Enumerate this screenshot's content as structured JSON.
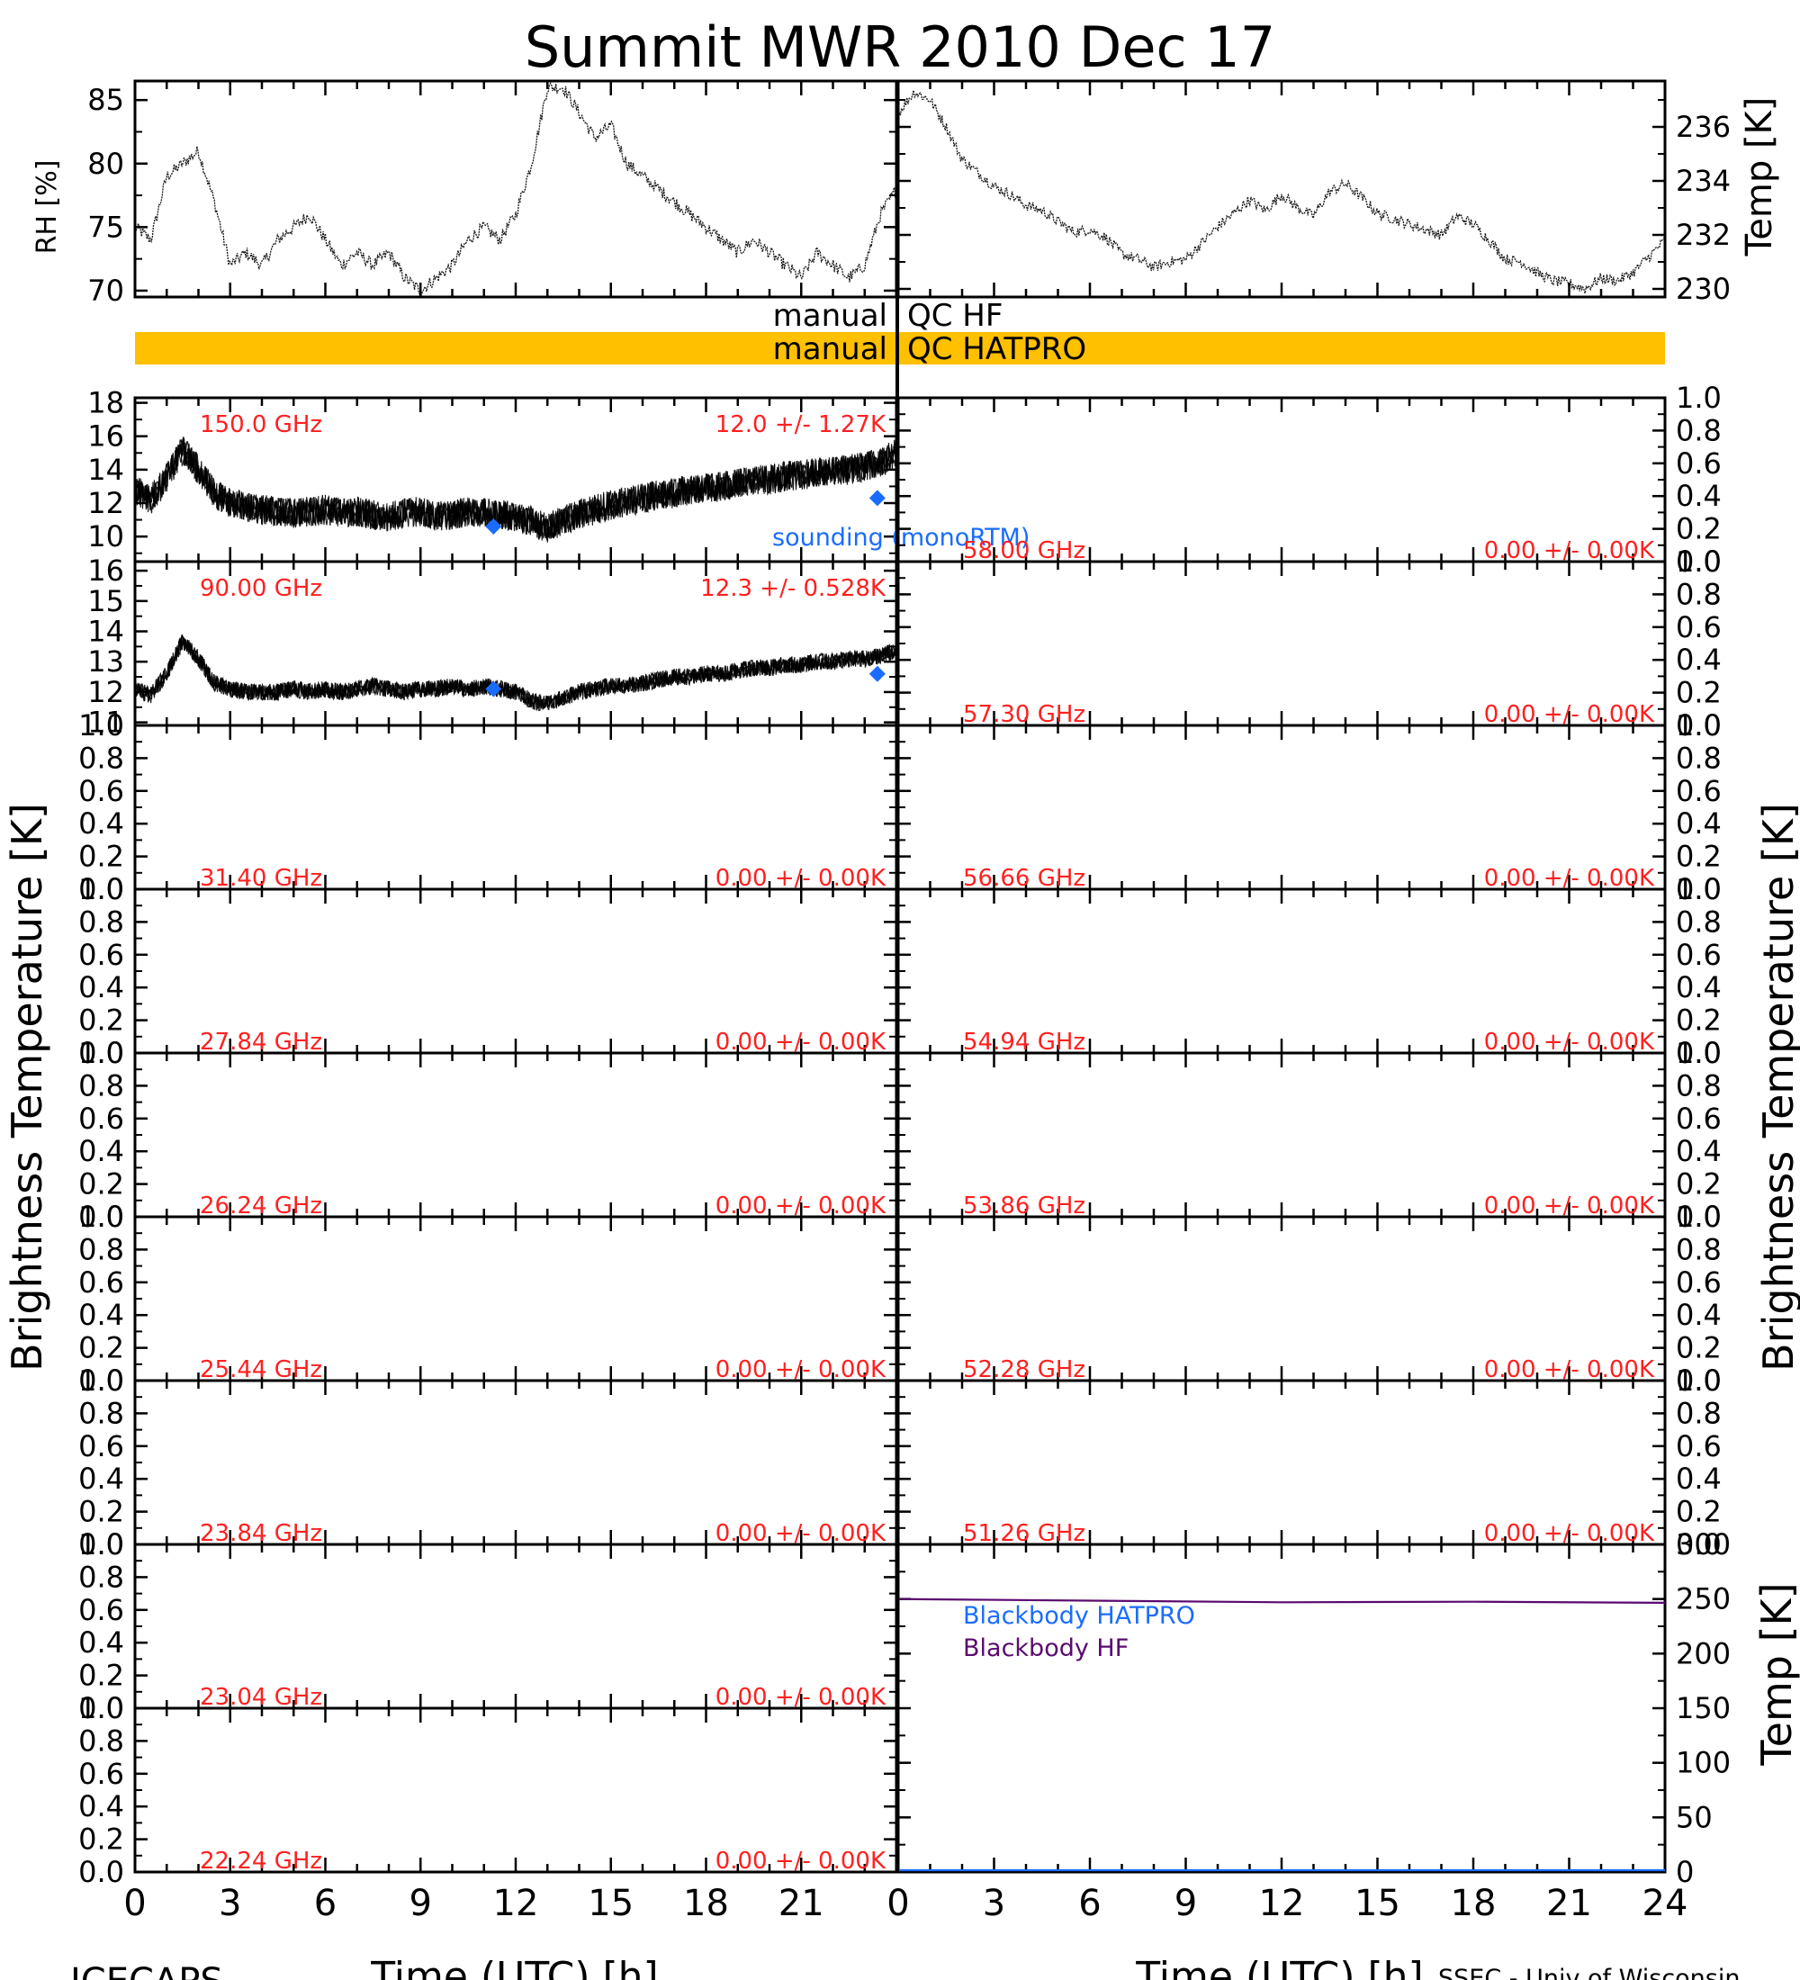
{
  "title": "Summit MWR 2010 Dec 17",
  "footer": {
    "left": "ICECAPS",
    "right": "SSEC - Univ of Wisconsin"
  },
  "qc_bars": [
    {
      "label": "manual QC HF",
      "color": "",
      "flagged": false
    },
    {
      "label": "manual QC HATPRO",
      "color": "#ffc000",
      "flagged": true
    }
  ],
  "colors": {
    "marker": "#1a6cff",
    "label": "#ff2020",
    "trace": "#000000",
    "bb_hf": "#5a0a6e",
    "bb_hatpro": "#1a6cff"
  },
  "chart_data": [
    {
      "id": "rh",
      "type": "line",
      "ylabel": "RH [%]",
      "ylim": [
        69.5,
        86.5
      ],
      "yticks": [
        70,
        75,
        80,
        85
      ],
      "x": [
        0,
        0.5,
        1,
        1.5,
        2,
        2.5,
        3,
        3.5,
        4,
        4.5,
        5,
        5.5,
        6,
        6.5,
        7,
        7.5,
        8,
        8.5,
        9,
        9.5,
        10,
        10.5,
        11,
        11.5,
        12,
        12.5,
        13,
        13.5,
        14,
        14.5,
        15,
        15.5,
        16,
        16.5,
        17,
        17.5,
        18,
        18.5,
        19,
        19.5,
        20,
        20.5,
        21,
        21.5,
        22,
        22.5,
        23,
        23.5,
        24
      ],
      "values": [
        75,
        74,
        79,
        80,
        81,
        77,
        72,
        73,
        72,
        74,
        75,
        76,
        74,
        72,
        73,
        72,
        73,
        71,
        70,
        71,
        72,
        74,
        75,
        74,
        76,
        80,
        86,
        86,
        84,
        82,
        83,
        80,
        79,
        78,
        77,
        76,
        75,
        74,
        73,
        74,
        73,
        72,
        71,
        73,
        72,
        71,
        72,
        76,
        78
      ]
    },
    {
      "id": "temp",
      "type": "line",
      "ylabel": "Temp [K]",
      "ylim": [
        229.7,
        237.7
      ],
      "yticks": [
        230,
        232,
        234,
        236
      ],
      "x": [
        0,
        0.5,
        1,
        1.5,
        2,
        2.5,
        3,
        3.5,
        4,
        4.5,
        5,
        5.5,
        6,
        6.5,
        7,
        7.5,
        8,
        8.5,
        9,
        9.5,
        10,
        10.5,
        11,
        11.5,
        12,
        12.5,
        13,
        13.5,
        14,
        14.5,
        15,
        15.5,
        16,
        16.5,
        17,
        17.5,
        18,
        18.5,
        19,
        19.5,
        20,
        20.5,
        21,
        21.5,
        22,
        22.5,
        23,
        23.5,
        24
      ],
      "values": [
        236.5,
        237.3,
        237,
        236,
        234.8,
        234.3,
        233.8,
        233.5,
        233.1,
        232.9,
        232.5,
        232.1,
        232.2,
        231.9,
        231.3,
        231.1,
        230.8,
        231,
        231.1,
        231.7,
        232.3,
        232.8,
        233.3,
        232.9,
        233.5,
        233,
        232.7,
        233.6,
        233.9,
        233.4,
        232.8,
        232.6,
        232.4,
        232.2,
        232,
        232.7,
        232.4,
        231.8,
        231.1,
        231,
        230.6,
        230.3,
        230.2,
        230,
        230.4,
        230.3,
        230.6,
        231.2,
        231.8
      ]
    },
    {
      "id": "ch150",
      "type": "line",
      "side": "left",
      "ylim": [
        8.5,
        18.3
      ],
      "yticks": [
        10,
        12,
        14,
        16,
        18
      ],
      "freq": "150.0 GHz",
      "stat": "12.0 +/- 1.27K",
      "x": [
        0,
        0.5,
        1,
        1.5,
        2,
        2.5,
        3,
        3.5,
        4,
        4.5,
        5,
        5.5,
        6,
        6.5,
        7,
        7.5,
        8,
        8.5,
        9,
        9.5,
        10,
        10.5,
        11,
        11.5,
        12,
        12.5,
        13,
        13.5,
        14,
        14.5,
        15,
        15.5,
        16,
        16.5,
        17,
        17.5,
        18,
        18.5,
        19,
        19.5,
        20,
        20.5,
        21,
        21.5,
        22,
        22.5,
        23,
        23.5,
        24
      ],
      "values": [
        12.8,
        12.2,
        13.5,
        15.2,
        14,
        12.6,
        12,
        11.8,
        11.6,
        11.5,
        11.4,
        11.5,
        11.6,
        11.4,
        11.5,
        11.3,
        11.2,
        11.4,
        11.5,
        11.2,
        11.3,
        11.5,
        11.4,
        11.3,
        11.2,
        10.9,
        10.5,
        11,
        11.3,
        11.6,
        11.9,
        12.1,
        12.3,
        12.5,
        12.6,
        12.8,
        12.9,
        13,
        13.2,
        13.3,
        13.4,
        13.6,
        13.7,
        13.8,
        13.9,
        14,
        14.2,
        14.4,
        15
      ],
      "points": [
        {
          "x": 11.3,
          "y": 10.6
        },
        {
          "x": 23.4,
          "y": 12.3
        }
      ],
      "point_label": "sounding (monoRTM)"
    },
    {
      "id": "ch58",
      "type": "line",
      "side": "right",
      "ylim": [
        0,
        1
      ],
      "yticks": [
        0,
        0.2,
        0.4,
        0.6,
        0.8,
        1.0
      ],
      "freq": "58.00 GHz",
      "stat": "0.00 +/- 0.00K"
    },
    {
      "id": "ch90",
      "type": "line",
      "side": "left",
      "ylim": [
        10.9,
        16.3
      ],
      "yticks": [
        11,
        12,
        13,
        14,
        15,
        16
      ],
      "freq": "90.00 GHz",
      "stat": "12.3 +/- 0.528K",
      "x": [
        0,
        0.5,
        1,
        1.5,
        2,
        2.5,
        3,
        3.5,
        4,
        4.5,
        5,
        5.5,
        6,
        6.5,
        7,
        7.5,
        8,
        8.5,
        9,
        9.5,
        10,
        10.5,
        11,
        11.5,
        12,
        12.5,
        13,
        13.5,
        14,
        14.5,
        15,
        15.5,
        16,
        16.5,
        17,
        17.5,
        18,
        18.5,
        19,
        19.5,
        20,
        20.5,
        21,
        21.5,
        22,
        22.5,
        23,
        23.5,
        24
      ],
      "values": [
        12.1,
        11.9,
        12.6,
        13.7,
        13.1,
        12.3,
        12.1,
        12,
        12,
        12,
        12.1,
        12,
        12.1,
        12,
        12.1,
        12.2,
        12.1,
        12,
        12.1,
        12.1,
        12.2,
        12.1,
        12.2,
        12.1,
        12,
        11.7,
        11.6,
        11.8,
        12,
        12.1,
        12.2,
        12.2,
        12.3,
        12.4,
        12.5,
        12.5,
        12.6,
        12.6,
        12.7,
        12.8,
        12.8,
        12.9,
        12.9,
        13,
        13,
        13.1,
        13.1,
        13.2,
        13.4
      ],
      "points": [
        {
          "x": 11.3,
          "y": 12.1
        },
        {
          "x": 23.4,
          "y": 12.6
        }
      ]
    },
    {
      "id": "ch57_30",
      "type": "line",
      "side": "right",
      "ylim": [
        0,
        1
      ],
      "yticks": [
        0,
        0.2,
        0.4,
        0.6,
        0.8,
        1.0
      ],
      "freq": "57.30 GHz",
      "stat": "0.00 +/- 0.00K"
    },
    {
      "id": "ch31_40",
      "type": "line",
      "side": "left",
      "ylim": [
        0,
        1
      ],
      "yticks": [
        0,
        0.2,
        0.4,
        0.6,
        0.8,
        1.0
      ],
      "freq": "31.40 GHz",
      "stat": "0.00 +/- 0.00K"
    },
    {
      "id": "ch56_66",
      "type": "line",
      "side": "right",
      "ylim": [
        0,
        1
      ],
      "yticks": [
        0,
        0.2,
        0.4,
        0.6,
        0.8,
        1.0
      ],
      "freq": "56.66 GHz",
      "stat": "0.00 +/- 0.00K"
    },
    {
      "id": "ch27_84",
      "type": "line",
      "side": "left",
      "ylim": [
        0,
        1
      ],
      "yticks": [
        0,
        0.2,
        0.4,
        0.6,
        0.8,
        1.0
      ],
      "freq": "27.84 GHz",
      "stat": "0.00 +/- 0.00K"
    },
    {
      "id": "ch54_94",
      "type": "line",
      "side": "right",
      "ylim": [
        0,
        1
      ],
      "yticks": [
        0,
        0.2,
        0.4,
        0.6,
        0.8,
        1.0
      ],
      "freq": "54.94 GHz",
      "stat": "0.00 +/- 0.00K"
    },
    {
      "id": "ch26_24",
      "type": "line",
      "side": "left",
      "ylim": [
        0,
        1
      ],
      "yticks": [
        0,
        0.2,
        0.4,
        0.6,
        0.8,
        1.0
      ],
      "freq": "26.24 GHz",
      "stat": "0.00 +/- 0.00K"
    },
    {
      "id": "ch53_86",
      "type": "line",
      "side": "right",
      "ylim": [
        0,
        1
      ],
      "yticks": [
        0,
        0.2,
        0.4,
        0.6,
        0.8,
        1.0
      ],
      "freq": "53.86 GHz",
      "stat": "0.00 +/- 0.00K"
    },
    {
      "id": "ch25_44",
      "type": "line",
      "side": "left",
      "ylim": [
        0,
        1
      ],
      "yticks": [
        0,
        0.2,
        0.4,
        0.6,
        0.8,
        1.0
      ],
      "freq": "25.44 GHz",
      "stat": "0.00 +/- 0.00K"
    },
    {
      "id": "ch52_28",
      "type": "line",
      "side": "right",
      "ylim": [
        0,
        1
      ],
      "yticks": [
        0,
        0.2,
        0.4,
        0.6,
        0.8,
        1.0
      ],
      "freq": "52.28 GHz",
      "stat": "0.00 +/- 0.00K"
    },
    {
      "id": "ch23_84",
      "type": "line",
      "side": "left",
      "ylim": [
        0,
        1
      ],
      "yticks": [
        0,
        0.2,
        0.4,
        0.6,
        0.8,
        1.0
      ],
      "freq": "23.84 GHz",
      "stat": "0.00 +/- 0.00K"
    },
    {
      "id": "ch51_26",
      "type": "line",
      "side": "right",
      "ylim": [
        0,
        1
      ],
      "yticks": [
        0,
        0.2,
        0.4,
        0.6,
        0.8,
        1.0
      ],
      "freq": "51.26 GHz",
      "stat": "0.00 +/- 0.00K"
    },
    {
      "id": "ch23_04",
      "type": "line",
      "side": "left",
      "ylim": [
        0,
        1
      ],
      "yticks": [
        0,
        0.2,
        0.4,
        0.6,
        0.8,
        1.0
      ],
      "freq": "23.04 GHz",
      "stat": "0.00 +/- 0.00K"
    },
    {
      "id": "ch22_24",
      "type": "line",
      "side": "left",
      "ylim": [
        0,
        1
      ],
      "yticks": [
        0,
        0.2,
        0.4,
        0.6,
        0.8,
        1.0
      ],
      "freq": "22.24 GHz",
      "stat": "0.00 +/- 0.00K"
    },
    {
      "id": "blackbody",
      "type": "line",
      "ylabel": "Temp [K]",
      "ylim": [
        0,
        300
      ],
      "yticks": [
        0,
        50,
        100,
        150,
        200,
        250,
        300
      ],
      "xlim": [
        0,
        24
      ],
      "xticks": [
        0,
        3,
        6,
        9,
        12,
        15,
        18,
        21,
        24
      ],
      "xlabel": "Time (UTC) [h]",
      "series": [
        {
          "name": "Blackbody HATPRO",
          "x": [
            0,
            24
          ],
          "values": [
            0,
            0
          ]
        },
        {
          "name": "Blackbody HF",
          "x": [
            0,
            6,
            12,
            18,
            24
          ],
          "values": [
            250,
            248.5,
            247,
            247.5,
            246.5
          ]
        }
      ]
    }
  ],
  "axes": {
    "ylabel_bt": "Brightness Temperature [K]",
    "xlabel": "Time (UTC) [h]",
    "xticks": [
      0,
      3,
      6,
      9,
      12,
      15,
      18,
      21
    ],
    "xticks_right": [
      0,
      3,
      6,
      9,
      12,
      15,
      18,
      21,
      24
    ]
  }
}
